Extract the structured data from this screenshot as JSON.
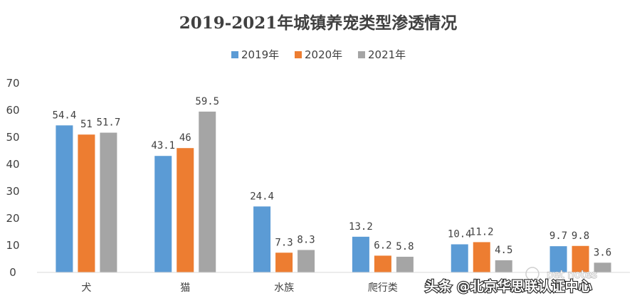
{
  "chart_data": {
    "type": "bar",
    "title": "2019-2021年城镇养宠类型渗透情况",
    "categories": [
      "犬",
      "猫",
      "水族",
      "爬行类",
      "",
      ""
    ],
    "series": [
      {
        "name": "2019年",
        "color": "#5B9BD5",
        "values": [
          54.4,
          43.1,
          24.4,
          13.2,
          10.4,
          9.7
        ],
        "labels": [
          "54.4",
          "43.1",
          "24.4",
          "13.2",
          "10.4",
          "9.7"
        ]
      },
      {
        "name": "2020年",
        "color": "#ED7D31",
        "values": [
          51,
          46,
          7.3,
          6.2,
          11.2,
          9.8
        ],
        "labels": [
          "51",
          "46",
          "7.3",
          "6.2",
          "11.2",
          "9.8"
        ]
      },
      {
        "name": "2021年",
        "color": "#A5A5A5",
        "values": [
          51.7,
          59.5,
          8.3,
          5.8,
          4.5,
          3.6
        ],
        "labels": [
          "51.7",
          "59.5",
          "8.3",
          "5.8",
          "4.5",
          "3.6"
        ]
      }
    ],
    "ylim": [
      0,
      70
    ],
    "yticks": [
      0,
      10,
      20,
      30,
      40,
      50,
      60,
      70
    ],
    "grid": false,
    "legend_position": "top-center"
  },
  "watermark": {
    "text": "头条 @北京华思联认证中心",
    "secondary_text": "pet notes"
  }
}
